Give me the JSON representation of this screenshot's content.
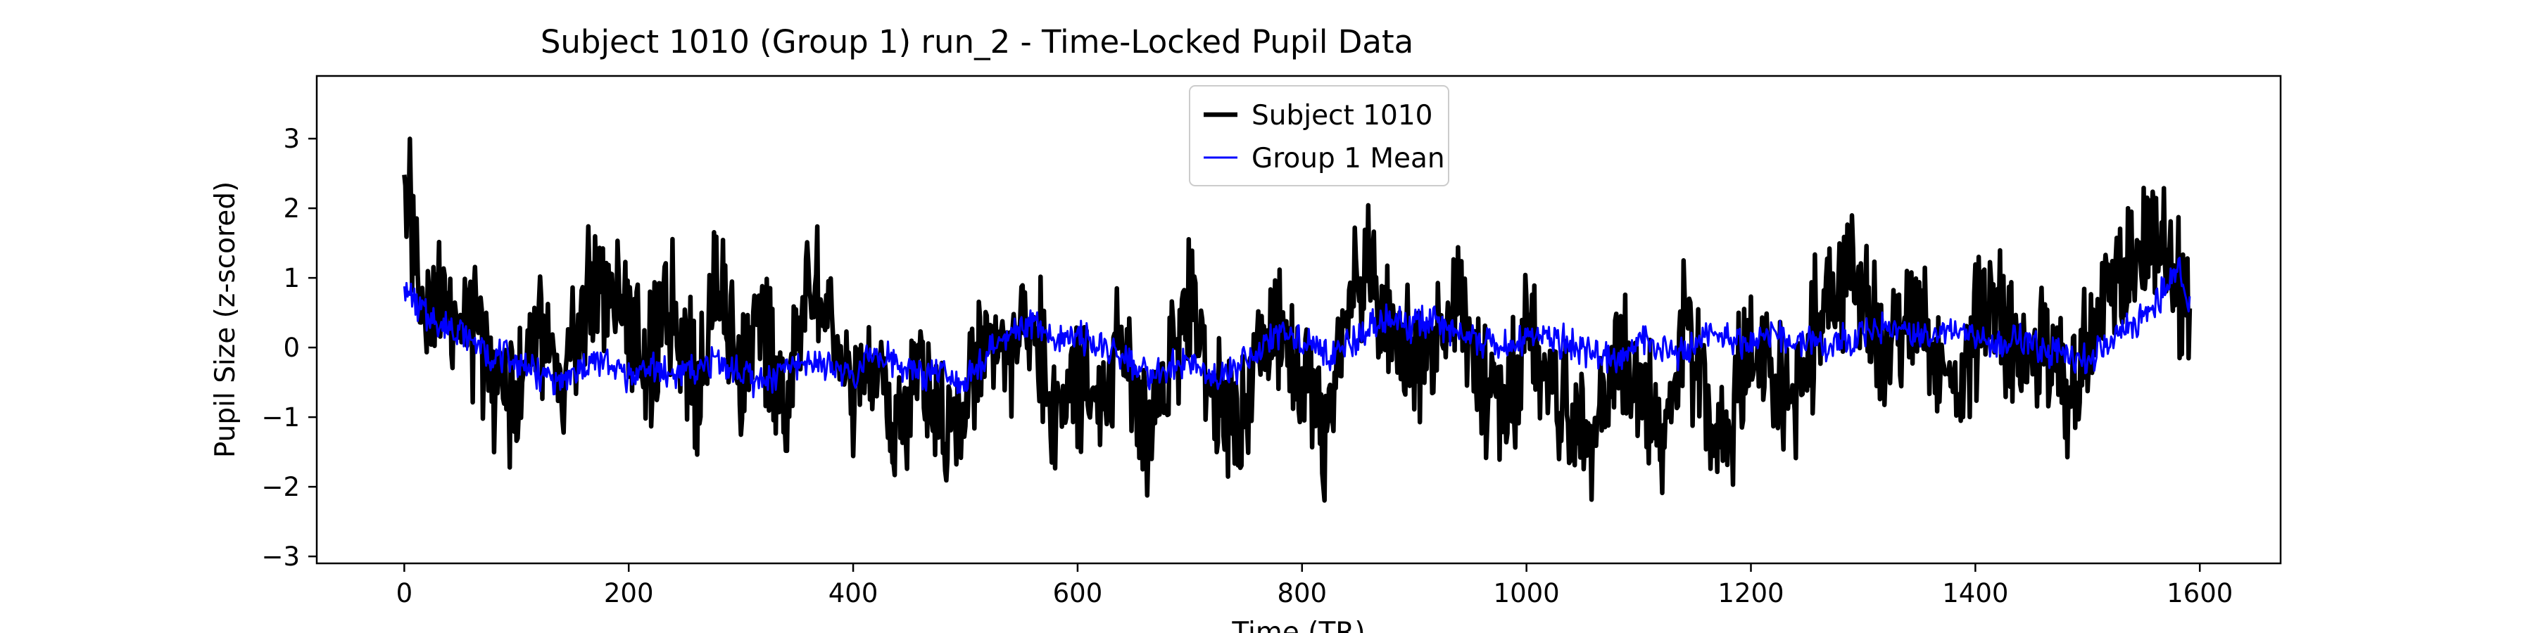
{
  "chart_data": {
    "type": "line",
    "title": "Subject 1010 (Group 1) run_2 - Time-Locked Pupil Data",
    "xlabel": "Time (TR)",
    "ylabel": "Pupil Size (z-scored)",
    "xlim": [
      -78,
      1672
    ],
    "ylim": [
      -3.1,
      3.9
    ],
    "xticks": [
      0,
      200,
      400,
      600,
      800,
      1000,
      1200,
      1400,
      1600
    ],
    "yticks": [
      -3,
      -2,
      -1,
      0,
      1,
      2,
      3
    ],
    "grid": false,
    "legend_position": "top-center",
    "n_points": 1592,
    "series": [
      {
        "name": "Subject 1010",
        "color": "#000000",
        "x": [
          0,
          20,
          40,
          60,
          80,
          100,
          120,
          140,
          160,
          180,
          200,
          220,
          240,
          260,
          280,
          300,
          320,
          340,
          360,
          380,
          400,
          420,
          440,
          460,
          480,
          500,
          520,
          540,
          560,
          580,
          600,
          620,
          640,
          660,
          680,
          700,
          720,
          740,
          760,
          780,
          800,
          820,
          840,
          860,
          880,
          900,
          920,
          940,
          960,
          980,
          1000,
          1020,
          1040,
          1060,
          1080,
          1100,
          1120,
          1140,
          1160,
          1180,
          1200,
          1220,
          1240,
          1260,
          1280,
          1300,
          1320,
          1340,
          1360,
          1380,
          1400,
          1420,
          1440,
          1460,
          1480,
          1500,
          1520,
          1540,
          1560,
          1580,
          1591
        ],
        "y": [
          2.5,
          0.5,
          0.7,
          0.3,
          -0.4,
          -0.8,
          0.5,
          -1.0,
          0.6,
          0.9,
          0.4,
          -0.3,
          0.7,
          -0.6,
          1.1,
          -0.5,
          0.3,
          -0.9,
          1.2,
          0.2,
          -0.8,
          -0.4,
          -1.3,
          -0.2,
          -1.1,
          -0.6,
          0.3,
          -0.2,
          0.5,
          -1.0,
          -0.4,
          -0.8,
          0.1,
          -1.2,
          -0.3,
          0.9,
          -0.5,
          -1.1,
          -0.2,
          0.3,
          -0.7,
          -1.4,
          0.6,
          1.2,
          0.5,
          -0.3,
          0.2,
          0.8,
          -0.4,
          -1.0,
          0.1,
          -0.6,
          -0.9,
          -1.3,
          -0.2,
          -0.5,
          -1.4,
          0.4,
          -0.8,
          -1.2,
          0.2,
          -0.4,
          -0.9,
          0.5,
          0.9,
          0.8,
          -0.3,
          0.7,
          0.1,
          -0.5,
          0.3,
          0.6,
          -0.4,
          0.2,
          -0.7,
          0.1,
          0.6,
          1.2,
          1.6,
          1.0,
          0.5
        ]
      },
      {
        "name": "Group 1 Mean",
        "color": "#0000ff",
        "x": [
          0,
          20,
          40,
          60,
          80,
          100,
          120,
          140,
          160,
          180,
          200,
          220,
          240,
          260,
          280,
          300,
          320,
          340,
          360,
          380,
          400,
          420,
          440,
          460,
          480,
          500,
          520,
          540,
          560,
          580,
          600,
          620,
          640,
          660,
          680,
          700,
          720,
          740,
          760,
          780,
          800,
          820,
          840,
          860,
          880,
          900,
          920,
          940,
          960,
          980,
          1000,
          1020,
          1040,
          1060,
          1080,
          1100,
          1120,
          1140,
          1160,
          1180,
          1200,
          1220,
          1240,
          1260,
          1280,
          1300,
          1320,
          1340,
          1360,
          1380,
          1400,
          1420,
          1440,
          1460,
          1480,
          1500,
          1520,
          1540,
          1560,
          1580,
          1591
        ],
        "y": [
          0.9,
          0.4,
          0.3,
          0.1,
          -0.1,
          -0.2,
          -0.4,
          -0.5,
          -0.3,
          -0.2,
          -0.4,
          -0.3,
          -0.4,
          -0.3,
          -0.2,
          -0.4,
          -0.5,
          -0.3,
          -0.2,
          -0.3,
          -0.4,
          -0.1,
          -0.2,
          -0.4,
          -0.3,
          -0.5,
          -0.1,
          0.2,
          0.3,
          0.1,
          0.2,
          0.0,
          -0.2,
          -0.4,
          -0.3,
          -0.2,
          -0.4,
          -0.3,
          -0.1,
          0.2,
          0.1,
          -0.1,
          0.0,
          0.3,
          0.4,
          0.3,
          0.4,
          0.2,
          0.1,
          0.0,
          0.1,
          0.2,
          0.0,
          -0.1,
          -0.2,
          0.1,
          0.0,
          -0.1,
          0.2,
          0.1,
          0.0,
          0.2,
          0.1,
          0.0,
          0.1,
          0.2,
          0.3,
          0.2,
          0.1,
          0.3,
          0.2,
          0.0,
          0.1,
          0.0,
          -0.1,
          -0.2,
          0.1,
          0.3,
          0.6,
          1.2,
          0.7
        ]
      }
    ]
  }
}
